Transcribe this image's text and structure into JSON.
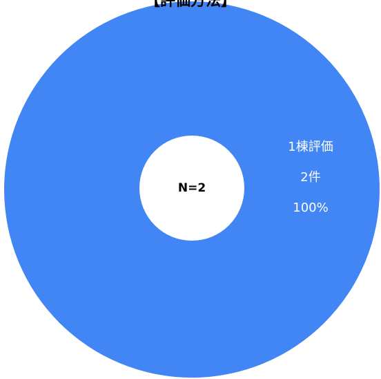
{
  "chart_data": {
    "type": "pie",
    "title": "【評価方法】",
    "categories": [
      "1棟評価"
    ],
    "values": [
      2
    ],
    "value_labels": [
      "2件"
    ],
    "percentages": [
      100
    ],
    "percentage_labels": [
      "100%"
    ],
    "colors": [
      "#4285f4"
    ],
    "center_label": "N=2"
  }
}
